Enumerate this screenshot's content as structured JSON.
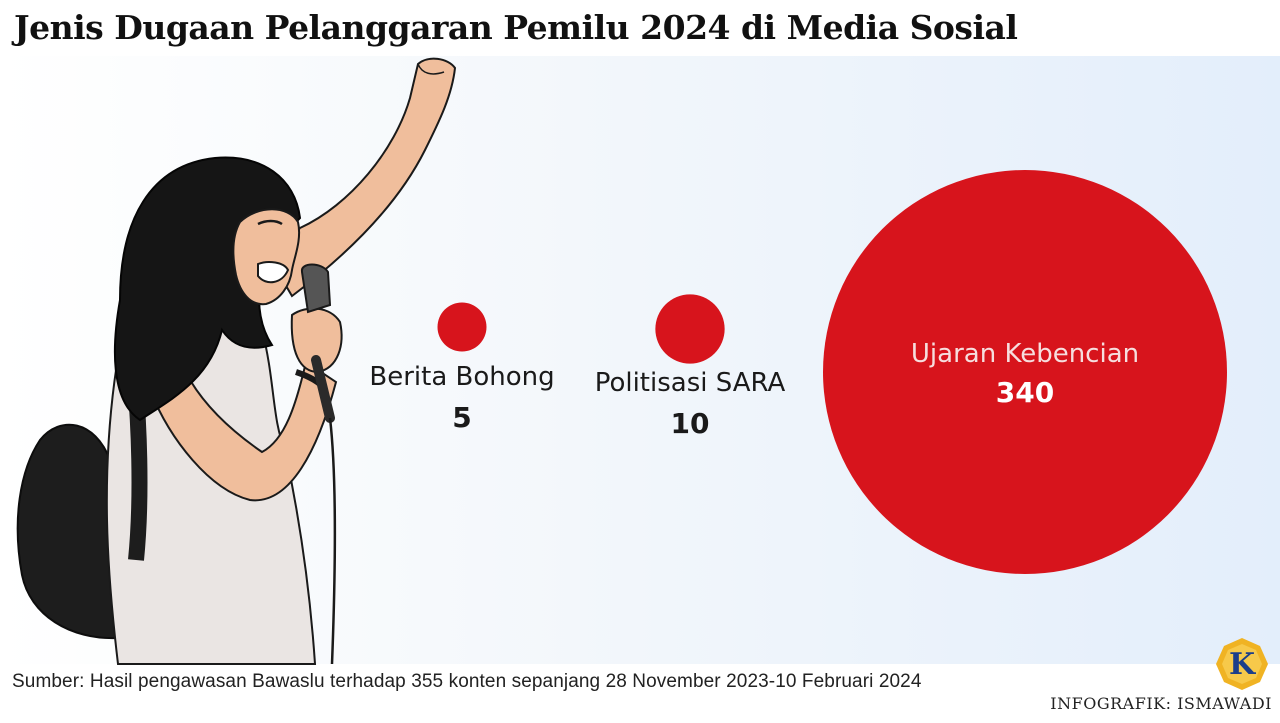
{
  "title": "Jenis Dugaan Pelanggaran Pemilu 2024 di Media Sosial",
  "source": "Sumber: Hasil pengawasan Bawaslu terhadap 355 konten sepanjang 28 November 2023-10 Februari 2024",
  "credit": "INFOGRAFIK: ISMAWADI",
  "logo_letter": "K",
  "colors": {
    "bubble": "#d7141c",
    "background_end": "#e3eefb",
    "label_on_bubble": "#f6dede",
    "value_on_bubble": "#ffffff",
    "logo_gold": "#f0b323",
    "logo_blue": "#1c3e8a"
  },
  "chart_data": {
    "type": "bubble",
    "title": "Jenis Dugaan Pelanggaran Pemilu 2024 di Media Sosial",
    "categories": [
      "Berita Bohong",
      "Politisasi SARA",
      "Ujaran Kebencian"
    ],
    "values": [
      5,
      10,
      340
    ],
    "value_labels": [
      "5",
      "10",
      "340"
    ]
  }
}
